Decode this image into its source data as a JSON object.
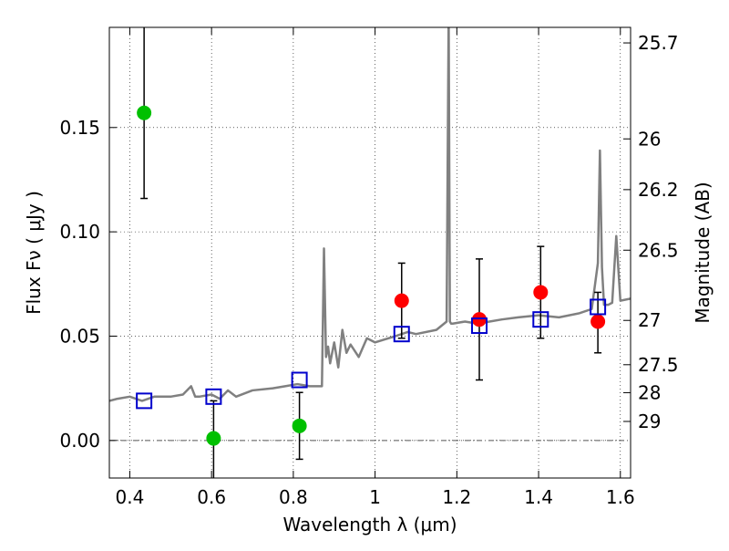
{
  "chart_data": {
    "type": "scatter",
    "xlabel": "Wavelength  λ (μm)",
    "ylabel": "Flux  Fν  ( μJy )",
    "y2label": "Magnitude (AB)",
    "xlim": [
      0.35,
      1.625
    ],
    "ylim": [
      -0.018,
      0.198
    ],
    "x_ticks": [
      0.4,
      0.6,
      0.8,
      1.0,
      1.2,
      1.4,
      1.6
    ],
    "x_tick_labels": [
      "0.4",
      "0.6",
      "0.8",
      "1",
      "1.2",
      "1.4",
      "1.6"
    ],
    "y_ticks": [
      0.0,
      0.05,
      0.1,
      0.15
    ],
    "y_tick_labels": [
      "0.00",
      "0.05",
      "0.10",
      "0.15"
    ],
    "mag_ticks": [
      {
        "label": "25.7",
        "mag": 25.7
      },
      {
        "label": "26",
        "mag": 26.0
      },
      {
        "label": "26.2",
        "mag": 26.2
      },
      {
        "label": "26.5",
        "mag": 26.5
      },
      {
        "label": "27",
        "mag": 27.0
      },
      {
        "label": "27.5",
        "mag": 27.5
      },
      {
        "label": "28",
        "mag": 28.0
      },
      {
        "label": "29",
        "mag": 29.0
      }
    ],
    "grid": true,
    "colors": {
      "model": "#808080",
      "green": "#00c000",
      "red": "#ff0000",
      "box": "#0000cc",
      "errorbar": "#000000",
      "zero_line": "#555555"
    },
    "model_spectrum": {
      "x": [
        0.35,
        0.37,
        0.4,
        0.43,
        0.46,
        0.5,
        0.53,
        0.55,
        0.56,
        0.57,
        0.6,
        0.62,
        0.64,
        0.66,
        0.7,
        0.75,
        0.78,
        0.81,
        0.84,
        0.87,
        0.875,
        0.88,
        0.885,
        0.89,
        0.9,
        0.91,
        0.92,
        0.93,
        0.94,
        0.96,
        0.98,
        1.0,
        1.05,
        1.08,
        1.1,
        1.15,
        1.175,
        1.18,
        1.183,
        1.186,
        1.19,
        1.22,
        1.25,
        1.28,
        1.31,
        1.35,
        1.4,
        1.45,
        1.5,
        1.53,
        1.545,
        1.55,
        1.555,
        1.56,
        1.57,
        1.58,
        1.59,
        1.6,
        1.625
      ],
      "y": [
        0.019,
        0.02,
        0.021,
        0.019,
        0.021,
        0.021,
        0.022,
        0.026,
        0.021,
        0.021,
        0.022,
        0.02,
        0.024,
        0.021,
        0.024,
        0.025,
        0.026,
        0.027,
        0.026,
        0.026,
        0.092,
        0.04,
        0.045,
        0.037,
        0.047,
        0.035,
        0.053,
        0.042,
        0.046,
        0.04,
        0.049,
        0.047,
        0.05,
        0.052,
        0.051,
        0.053,
        0.057,
        0.205,
        0.057,
        0.056,
        0.056,
        0.057,
        0.056,
        0.057,
        0.058,
        0.059,
        0.06,
        0.059,
        0.061,
        0.063,
        0.085,
        0.139,
        0.083,
        0.065,
        0.065,
        0.066,
        0.098,
        0.067,
        0.068
      ]
    },
    "series": [
      {
        "color": "green",
        "marker": "circle",
        "points": [
          {
            "x": 0.435,
            "y": 0.157,
            "err_lo": 0.116,
            "err_hi": 0.198
          },
          {
            "x": 0.605,
            "y": 0.001,
            "err_lo": -0.018,
            "err_hi": 0.019
          },
          {
            "x": 0.815,
            "y": 0.007,
            "err_lo": -0.009,
            "err_hi": 0.023
          }
        ]
      },
      {
        "color": "red",
        "marker": "circle",
        "points": [
          {
            "x": 1.065,
            "y": 0.067,
            "err_lo": 0.049,
            "err_hi": 0.085
          },
          {
            "x": 1.255,
            "y": 0.058,
            "err_lo": 0.029,
            "err_hi": 0.087
          },
          {
            "x": 1.405,
            "y": 0.071,
            "err_lo": 0.049,
            "err_hi": 0.093
          },
          {
            "x": 1.545,
            "y": 0.057,
            "err_lo": 0.042,
            "err_hi": 0.071
          }
        ]
      },
      {
        "color": "box",
        "marker": "square",
        "points": [
          {
            "x": 0.435,
            "y": 0.019
          },
          {
            "x": 0.605,
            "y": 0.021
          },
          {
            "x": 0.815,
            "y": 0.029
          },
          {
            "x": 1.065,
            "y": 0.051
          },
          {
            "x": 1.255,
            "y": 0.055
          },
          {
            "x": 1.405,
            "y": 0.058
          },
          {
            "x": 1.545,
            "y": 0.064
          }
        ]
      }
    ]
  }
}
